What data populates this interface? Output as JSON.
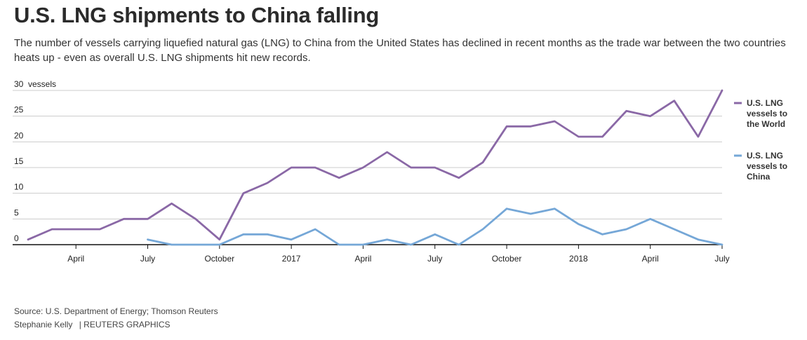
{
  "title": "U.S. LNG shipments to China falling",
  "subtitle": "The number of vessels carrying liquefied natural gas (LNG) to China from the United States has declined in recent months as the trade war between the two countries heats up - even as overall U.S. LNG shipments hit new records.",
  "source": "Source: U.S. Department of Energy; Thomson Reuters",
  "credit": "Stephanie Kelly",
  "credit_brand": "| REUTERS GRAPHICS",
  "colors": {
    "world": "#8a68a6",
    "china": "#75a7d7",
    "grid": "#cccccc",
    "axis": "#111111"
  },
  "chart_data": {
    "type": "line",
    "x": [
      "2016-02",
      "2016-03",
      "2016-04",
      "2016-05",
      "2016-06",
      "2016-07",
      "2016-08",
      "2016-09",
      "2016-10",
      "2016-11",
      "2016-12",
      "2017-01",
      "2017-02",
      "2017-03",
      "2017-04",
      "2017-05",
      "2017-06",
      "2017-07",
      "2017-08",
      "2017-09",
      "2017-10",
      "2017-11",
      "2017-12",
      "2018-01",
      "2018-02",
      "2018-03",
      "2018-04",
      "2018-05",
      "2018-06",
      "2018-07"
    ],
    "x_ticks": [
      {
        "x": "2016-04",
        "label": "April"
      },
      {
        "x": "2016-07",
        "label": "July"
      },
      {
        "x": "2016-10",
        "label": "October"
      },
      {
        "x": "2017-01",
        "label": "2017"
      },
      {
        "x": "2017-04",
        "label": "April"
      },
      {
        "x": "2017-07",
        "label": "July"
      },
      {
        "x": "2017-10",
        "label": "October"
      },
      {
        "x": "2018-01",
        "label": "2018"
      },
      {
        "x": "2018-04",
        "label": "April"
      },
      {
        "x": "2018-07",
        "label": "July"
      }
    ],
    "y_ticks": [
      "30",
      "25",
      "20",
      "15",
      "10",
      "5",
      "0"
    ],
    "y_unit": "vessels",
    "ylim": [
      0,
      30
    ],
    "grid": true,
    "legend_position": "right",
    "series": [
      {
        "name": "U.S. LNG vessels to the World",
        "legend_lines": [
          "U.S. LNG",
          "vessels to",
          "the World"
        ],
        "values": [
          1,
          3,
          3,
          3,
          5,
          5,
          8,
          5,
          1,
          10,
          12,
          15,
          15,
          13,
          15,
          18,
          15,
          15,
          13,
          16,
          23,
          23,
          24,
          21,
          21,
          26,
          25,
          28,
          21,
          30
        ]
      },
      {
        "name": "U.S. LNG vessels to China",
        "legend_lines": [
          "U.S. LNG",
          "vessels to",
          "China"
        ],
        "values": [
          null,
          null,
          null,
          null,
          null,
          1,
          0,
          0,
          0,
          2,
          2,
          1,
          3,
          0,
          0,
          1,
          0,
          2,
          0,
          3,
          7,
          6,
          7,
          4,
          2,
          3,
          5,
          3,
          1,
          0
        ]
      }
    ]
  }
}
